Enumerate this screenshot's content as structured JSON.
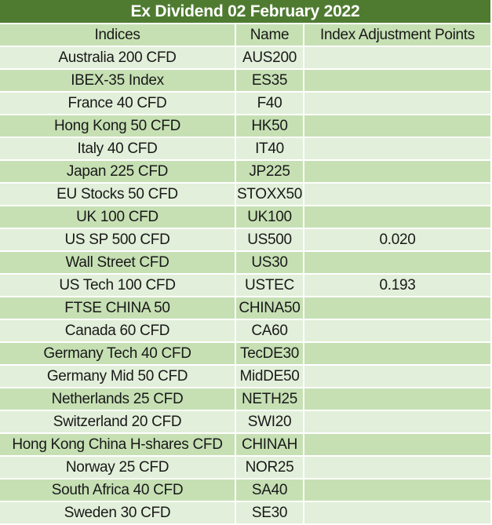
{
  "title": "Ex Dividend 02 February 2022",
  "chart_data": {
    "type": "table",
    "title": "Ex Dividend 02 February 2022",
    "columns": [
      "Indices",
      "Name",
      "Index Adjustment Points"
    ],
    "rows": [
      {
        "indices": "Australia 200 CFD",
        "name": "AUS200",
        "points": ""
      },
      {
        "indices": "IBEX-35 Index",
        "name": "ES35",
        "points": ""
      },
      {
        "indices": "France 40 CFD",
        "name": "F40",
        "points": ""
      },
      {
        "indices": "Hong Kong 50 CFD",
        "name": "HK50",
        "points": ""
      },
      {
        "indices": "Italy 40 CFD",
        "name": "IT40",
        "points": ""
      },
      {
        "indices": "Japan 225 CFD",
        "name": "JP225",
        "points": ""
      },
      {
        "indices": "EU Stocks 50 CFD",
        "name": "STOXX50",
        "points": ""
      },
      {
        "indices": "UK 100 CFD",
        "name": "UK100",
        "points": ""
      },
      {
        "indices": "US SP 500 CFD",
        "name": "US500",
        "points": "0.020"
      },
      {
        "indices": "Wall Street CFD",
        "name": "US30",
        "points": ""
      },
      {
        "indices": "US Tech 100 CFD",
        "name": "USTEC",
        "points": "0.193"
      },
      {
        "indices": "FTSE CHINA 50",
        "name": "CHINA50",
        "points": ""
      },
      {
        "indices": "Canada 60 CFD",
        "name": "CA60",
        "points": ""
      },
      {
        "indices": "Germany Tech 40 CFD",
        "name": "TecDE30",
        "points": ""
      },
      {
        "indices": "Germany Mid 50 CFD",
        "name": "MidDE50",
        "points": ""
      },
      {
        "indices": "Netherlands 25 CFD",
        "name": "NETH25",
        "points": ""
      },
      {
        "indices": "Switzerland 20 CFD",
        "name": "SWI20",
        "points": ""
      },
      {
        "indices": "Hong Kong China H-shares CFD",
        "name": "CHINAH",
        "points": ""
      },
      {
        "indices": "Norway 25 CFD",
        "name": "NOR25",
        "points": ""
      },
      {
        "indices": "South Africa 40 CFD",
        "name": "SA40",
        "points": ""
      },
      {
        "indices": "Sweden 30 CFD",
        "name": "SE30",
        "points": ""
      }
    ]
  },
  "colors": {
    "title_bg": "#4f7b31",
    "title_text": "#ffffff",
    "header_bg": "#c6e0b4",
    "row_light": "#e2efda",
    "row_medium": "#c6e0b4",
    "grid": "#ffffff",
    "text": "#191919"
  }
}
